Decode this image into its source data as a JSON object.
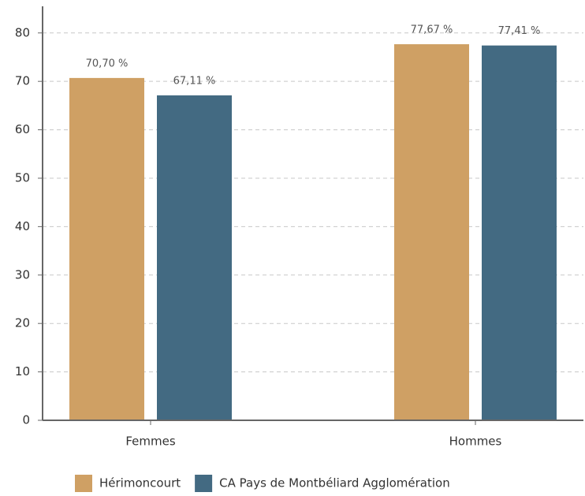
{
  "chart_data": {
    "type": "bar",
    "categories": [
      "Femmes",
      "Hommes"
    ],
    "series": [
      {
        "name": "Hérimoncourt",
        "color": "#cfa064",
        "values": [
          70.7,
          77.67
        ],
        "value_labels": [
          "70,70 %",
          "77,67 %"
        ]
      },
      {
        "name": "CA Pays de Montbéliard Agglomération",
        "color": "#436a82",
        "values": [
          67.11,
          77.41
        ],
        "value_labels": [
          "67,11 %",
          "77,41 %"
        ]
      }
    ],
    "ylim": [
      0,
      85.5
    ],
    "yticks": [
      0,
      10,
      20,
      30,
      40,
      50,
      60,
      70,
      80
    ],
    "grid": true,
    "legend": "bottom"
  }
}
